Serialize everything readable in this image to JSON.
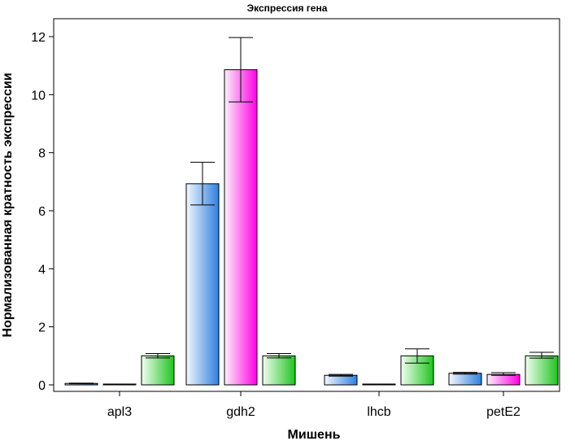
{
  "chart_data": {
    "type": "bar",
    "title": "Экспрессия гена",
    "xlabel": "Мишень",
    "ylabel": "Нормализованная кратность экспрессии",
    "categories": [
      "apl3",
      "gdh2",
      "lhcb",
      "petE2"
    ],
    "ylim": [
      0,
      12.6
    ],
    "yticks": [
      0,
      2,
      4,
      6,
      8,
      10,
      12
    ],
    "grid": false,
    "legend": "none",
    "series": [
      {
        "values": [
          0.05,
          6.93,
          0.33,
          0.4
        ],
        "err_low": [
          0.04,
          6.2,
          0.3,
          0.37
        ],
        "err_high": [
          0.06,
          7.67,
          0.36,
          0.43
        ],
        "color_light": "#f2f8ff",
        "color_dark": "#2f7fe0"
      },
      {
        "values": [
          0.0,
          10.86,
          0.0,
          0.36
        ],
        "err_low": [
          0.0,
          9.75,
          0.0,
          0.33
        ],
        "err_high": [
          0.0,
          11.97,
          0.0,
          0.42
        ],
        "color_light": "#fff0fc",
        "color_dark": "#ff00e6"
      },
      {
        "values": [
          1.0,
          1.0,
          1.0,
          1.0
        ],
        "err_low": [
          0.93,
          0.93,
          0.75,
          0.92
        ],
        "err_high": [
          1.08,
          1.08,
          1.24,
          1.12
        ],
        "color_light": "#f0fff0",
        "color_dark": "#1fc41f"
      }
    ]
  }
}
